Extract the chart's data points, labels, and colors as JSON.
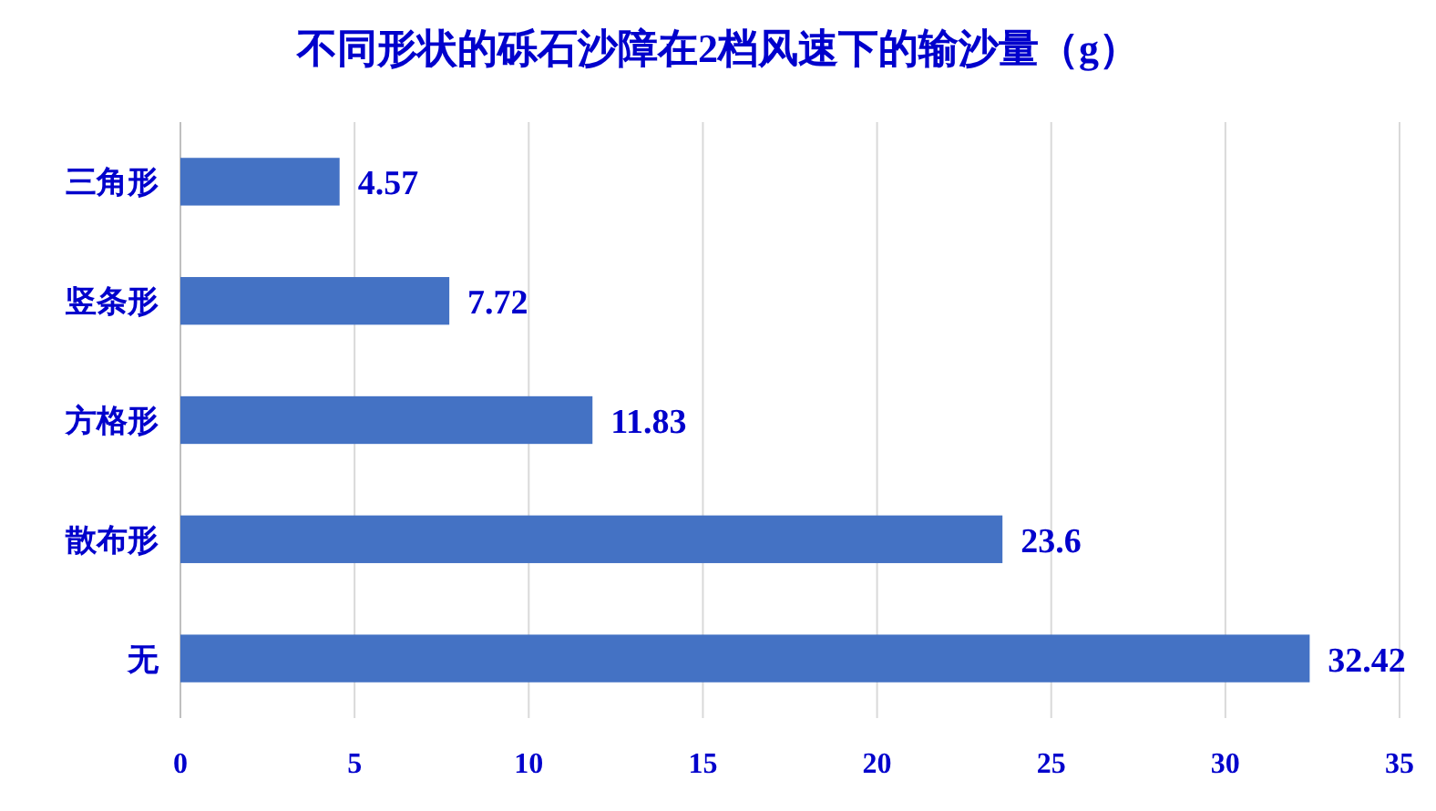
{
  "chart_data": {
    "type": "bar",
    "orientation": "horizontal",
    "title": "不同形状的砾石沙障在2档风速下的输沙量（g）",
    "categories": [
      "三角形",
      "竖条形",
      "方格形",
      "散布形",
      "无"
    ],
    "values": [
      4.57,
      7.72,
      11.83,
      23.6,
      32.42
    ],
    "color": "#4472c4",
    "xlim": [
      0,
      35
    ],
    "xticks": [
      0,
      5,
      10,
      15,
      20,
      25,
      30,
      35
    ],
    "grid": "x",
    "data_labels": true
  }
}
